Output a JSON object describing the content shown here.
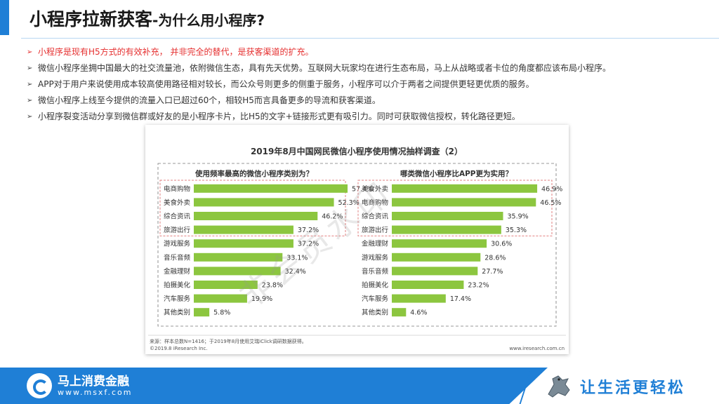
{
  "header": {
    "title_main": "小程序拉新获客",
    "title_sub": "-为什么用小程序?"
  },
  "bullets": [
    "小程序是现有H5方式的有效补充， 并非完全的替代，是获客渠道的扩充。",
    "微信小程序坐拥中国最大的社交流量池，依附微信生态，具有先天优势。互联网大玩家均在进行生态布局，马上从战略或者卡位的角度都应该布局小程序。",
    "APP对于用户来说使用成本较高使用路径相对较长，而公众号则更多的侧重于服务，小程序可以介于两者之间提供更轻更优质的服务。",
    "微信小程序上线至今提供的流量入口已超过60个，相较H5而言具备更多的导流和获客渠道。",
    "小程序裂变活动分享到微信群或好友的是小程序卡片，比H5的文字+链接形式更有吸引力。同时可获取微信授权，转化路径更短。"
  ],
  "colors": {
    "accent": "#1f7fd6",
    "bar": "#8cc63f",
    "highlight_text": "#e52f2f",
    "dashed_box": "#e28080"
  },
  "chart_data": [
    {
      "type": "bar",
      "orientation": "horizontal",
      "figure_title": "2019年8月中国网民微信小程序使用情况抽样调查（2）",
      "title": "使用频率最高的微信小程序类别为？",
      "categories": [
        "电商购物",
        "美食外卖",
        "综合资讯",
        "旅游出行",
        "游戏服务",
        "音乐音频",
        "金融理财",
        "拍摄美化",
        "汽车服务",
        "其他类别"
      ],
      "values": [
        57.4,
        52.3,
        46.2,
        37.2,
        37.2,
        33.1,
        32.4,
        23.8,
        19.9,
        5.8
      ],
      "value_labels": [
        "57.4%",
        "52.3%",
        "46.2%",
        "37.2%",
        "37.2%",
        "33.1%",
        "32.4%",
        "23.8%",
        "19.9%",
        "5.8%"
      ],
      "highlighted_top": 4,
      "xlim": [
        0,
        100
      ]
    },
    {
      "type": "bar",
      "orientation": "horizontal",
      "title": "哪类微信小程序比APP更为实用？",
      "categories": [
        "美食外卖",
        "电商购物",
        "综合资讯",
        "旅游出行",
        "金融理财",
        "游戏服务",
        "音乐音频",
        "拍摄美化",
        "汽车服务",
        "其他类别"
      ],
      "values": [
        46.9,
        46.5,
        35.9,
        35.3,
        30.6,
        28.6,
        27.7,
        23.2,
        17.4,
        4.6
      ],
      "value_labels": [
        "46.9%",
        "46.5%",
        "35.9%",
        "35.3%",
        "30.6%",
        "28.6%",
        "27.7%",
        "23.2%",
        "17.4%",
        "4.6%"
      ],
      "highlighted_top": 4,
      "xlim": [
        0,
        100
      ]
    }
  ],
  "chart_footer": {
    "source": "来源：样本总数N=1416；于2019年8月使用艾瑞iClick调研数据获得。",
    "copyright": "©2019.8 iResearch Inc.",
    "site": "www.iresearch.com.cn"
  },
  "watermark": "非会员水印",
  "footer": {
    "brand": "马上消费金融",
    "url": "www.msxf.com",
    "slogan": "让生活更轻松",
    "logo_icon": "msxf-logo-icon",
    "mascot_icon": "horse-mascot-icon"
  }
}
